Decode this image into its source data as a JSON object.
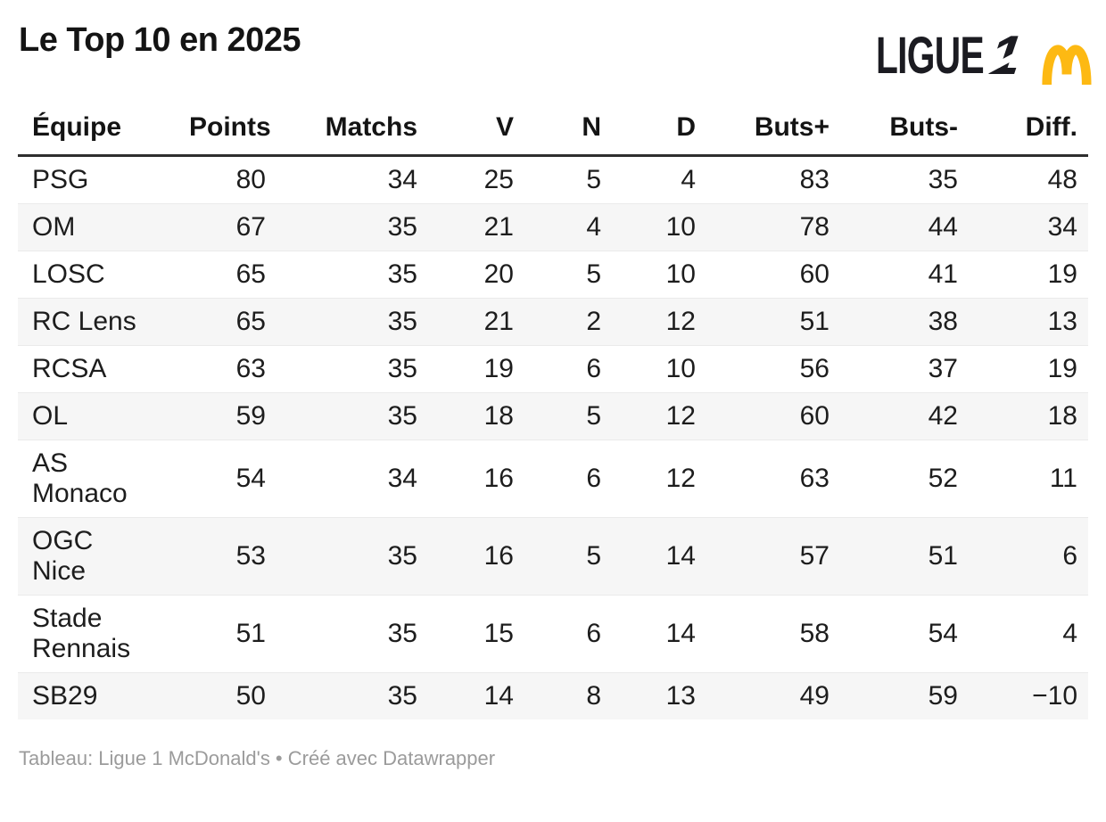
{
  "page": {
    "title": "Le Top 10 en 2025",
    "footer": "Tableau: Ligue 1 McDonald's • Créé avec Datawrapper"
  },
  "logo": {
    "ligue_text": "LIGUE",
    "one_glyph": "1",
    "text_color": "#1b1b21",
    "arches_color": "#FDB913"
  },
  "chart_data": {
    "type": "table",
    "title": "Le Top 10 en 2025",
    "columns": [
      "Équipe",
      "Points",
      "Matchs",
      "V",
      "N",
      "D",
      "Buts+",
      "Buts-",
      "Diff."
    ],
    "rows": [
      [
        "PSG",
        "80",
        "34",
        "25",
        "5",
        "4",
        "83",
        "35",
        "48"
      ],
      [
        "OM",
        "67",
        "35",
        "21",
        "4",
        "10",
        "78",
        "44",
        "34"
      ],
      [
        "LOSC",
        "65",
        "35",
        "20",
        "5",
        "10",
        "60",
        "41",
        "19"
      ],
      [
        "RC Lens",
        "65",
        "35",
        "21",
        "2",
        "12",
        "51",
        "38",
        "13"
      ],
      [
        "RCSA",
        "63",
        "35",
        "19",
        "6",
        "10",
        "56",
        "37",
        "19"
      ],
      [
        "OL",
        "59",
        "35",
        "18",
        "5",
        "12",
        "60",
        "42",
        "18"
      ],
      [
        "AS\nMonaco",
        "54",
        "34",
        "16",
        "6",
        "12",
        "63",
        "52",
        "11"
      ],
      [
        "OGC\nNice",
        "53",
        "35",
        "16",
        "5",
        "14",
        "57",
        "51",
        "6"
      ],
      [
        "Stade\nRennais",
        "51",
        "35",
        "15",
        "6",
        "14",
        "58",
        "54",
        "4"
      ],
      [
        "SB29",
        "50",
        "35",
        "14",
        "8",
        "13",
        "49",
        "59",
        "−10"
      ]
    ],
    "layout": {
      "first_column_align": "left",
      "other_columns_align": "right",
      "zebra_striping": true
    }
  },
  "colors": {
    "stripe": "#f6f6f6",
    "row_divider": "#eaeaea",
    "header_border": "#2e2e2e",
    "text": "#1d1d1d",
    "footer_text": "#9b9b9b",
    "arches_gold": "#FDB913"
  }
}
